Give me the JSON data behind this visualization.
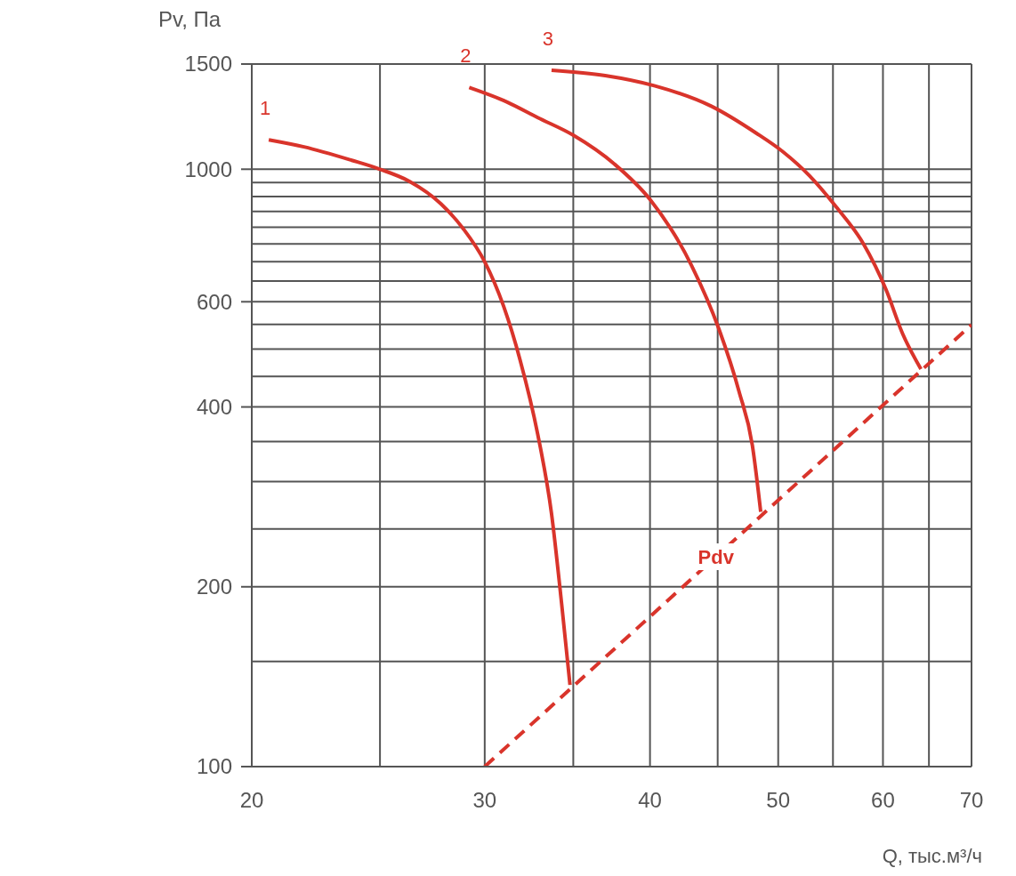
{
  "chart_data": {
    "type": "line",
    "ylabel": "Pv, Па",
    "xlabel": "Q, тыс.м³/ч",
    "log": "xy",
    "grid": true,
    "marker": "none",
    "xlim": [
      20,
      70
    ],
    "ylim": [
      100,
      1500
    ],
    "xticks": [
      20,
      {
        "value": 25,
        "label": null
      },
      30,
      {
        "value": 35,
        "label": null
      },
      40,
      {
        "value": 45,
        "label": null
      },
      50,
      {
        "value": 55,
        "label": null
      },
      60,
      {
        "value": 65,
        "label": null
      },
      70
    ],
    "yticks": [
      100,
      {
        "value": 150,
        "label": null
      },
      200,
      {
        "value": 250,
        "label": null
      },
      {
        "value": 300,
        "label": null
      },
      {
        "value": 350,
        "label": null
      },
      400,
      {
        "value": 450,
        "label": null
      },
      {
        "value": 500,
        "label": null
      },
      {
        "value": 550,
        "label": null
      },
      600,
      {
        "value": 650,
        "label": null
      },
      {
        "value": 700,
        "label": null
      },
      {
        "value": 750,
        "label": null
      },
      {
        "value": 800,
        "label": null
      },
      {
        "value": 850,
        "label": null
      },
      {
        "value": 900,
        "label": null
      },
      {
        "value": 950,
        "label": null
      },
      1000,
      1500
    ],
    "series": [
      {
        "name": "1",
        "color": "#d9342b",
        "line_style": "solid",
        "x": [
          20.6,
          21.9,
          23.8,
          25,
          26.3,
          27.8,
          28.9,
          30,
          31,
          31.9,
          32.9,
          33.7,
          34.3,
          34.8
        ],
        "values": [
          1120,
          1090,
          1035,
          1000,
          955,
          875,
          795,
          700,
          590,
          480,
          360,
          265,
          187,
          137
        ]
      },
      {
        "name": "2",
        "color": "#d9342b",
        "line_style": "solid",
        "x": [
          29.2,
          31.2,
          32.9,
          35,
          37.6,
          40,
          43,
          45.1,
          46.7,
          47.8,
          48.5
        ],
        "values": [
          1370,
          1295,
          1220,
          1140,
          1020,
          890,
          690,
          540,
          425,
          345,
          267
        ]
      },
      {
        "name": "3",
        "color": "#d9342b",
        "line_style": "solid",
        "x": [
          33.7,
          37,
          40.3,
          44.5,
          48.1,
          50.4,
          52.8,
          55.3,
          58,
          60.3,
          62.1,
          64.1
        ],
        "values": [
          1465,
          1435,
          1380,
          1275,
          1150,
          1070,
          975,
          865,
          750,
          630,
          530,
          463
        ]
      },
      {
        "name": "Pdv",
        "color": "#d9342b",
        "line_style": "dashed",
        "x": [
          30,
          70
        ],
        "values": [
          100,
          549
        ]
      }
    ]
  }
}
